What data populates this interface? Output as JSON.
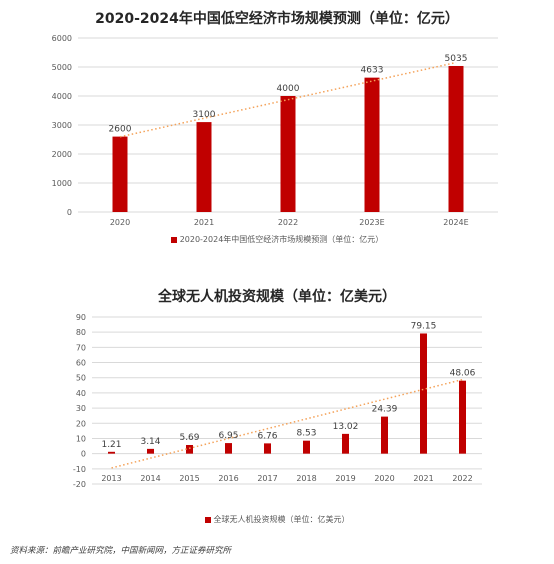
{
  "source": "资料来源：前瞻产业研究院，中国新闻网，方正证券研究所",
  "chart_data": [
    {
      "type": "bar",
      "title": "2020-2024年中国低空经济市场规模预测（单位：亿元）",
      "categories": [
        "2020",
        "2021",
        "2022",
        "2023E",
        "2024E"
      ],
      "series": [
        {
          "name": "2020-2024年中国低空经济市场规模预测（单位：亿元）",
          "values": [
            2600,
            3100,
            4000,
            4633,
            5035
          ]
        }
      ],
      "data_labels": [
        "2600",
        "3100",
        "4000",
        "4633",
        "5035"
      ],
      "ylim": [
        0,
        6000
      ],
      "yticks": [
        "0",
        "1000",
        "2000",
        "3000",
        "4000",
        "5000",
        "6000"
      ],
      "trendline": "linear, dotted",
      "grid": true,
      "legend": "bottom",
      "colors": {
        "bar": "#c00000",
        "trend": "#f4a259",
        "grid": "#d9d9d9"
      }
    },
    {
      "type": "bar",
      "title": "全球无人机投资规模（单位：亿美元）",
      "categories": [
        "2013",
        "2014",
        "2015",
        "2016",
        "2017",
        "2018",
        "2019",
        "2020",
        "2021",
        "2022"
      ],
      "series": [
        {
          "name": "全球无人机投资规模（单位：亿美元）",
          "values": [
            1.21,
            3.14,
            5.69,
            6.95,
            6.76,
            8.53,
            13.02,
            24.39,
            79.15,
            48.06
          ]
        }
      ],
      "data_labels": [
        "1.21",
        "3.14",
        "5.69",
        "6.95",
        "6.76",
        "8.53",
        "13.02",
        "24.39",
        "79.15",
        "48.06"
      ],
      "ylim": [
        -20,
        90
      ],
      "yticks": [
        "-20",
        "-10",
        "0",
        "10",
        "20",
        "30",
        "40",
        "50",
        "60",
        "70",
        "80",
        "90"
      ],
      "trendline": "linear, dotted",
      "grid": true,
      "legend": "bottom",
      "colors": {
        "bar": "#c00000",
        "trend": "#f4a259",
        "grid": "#d9d9d9"
      }
    }
  ]
}
